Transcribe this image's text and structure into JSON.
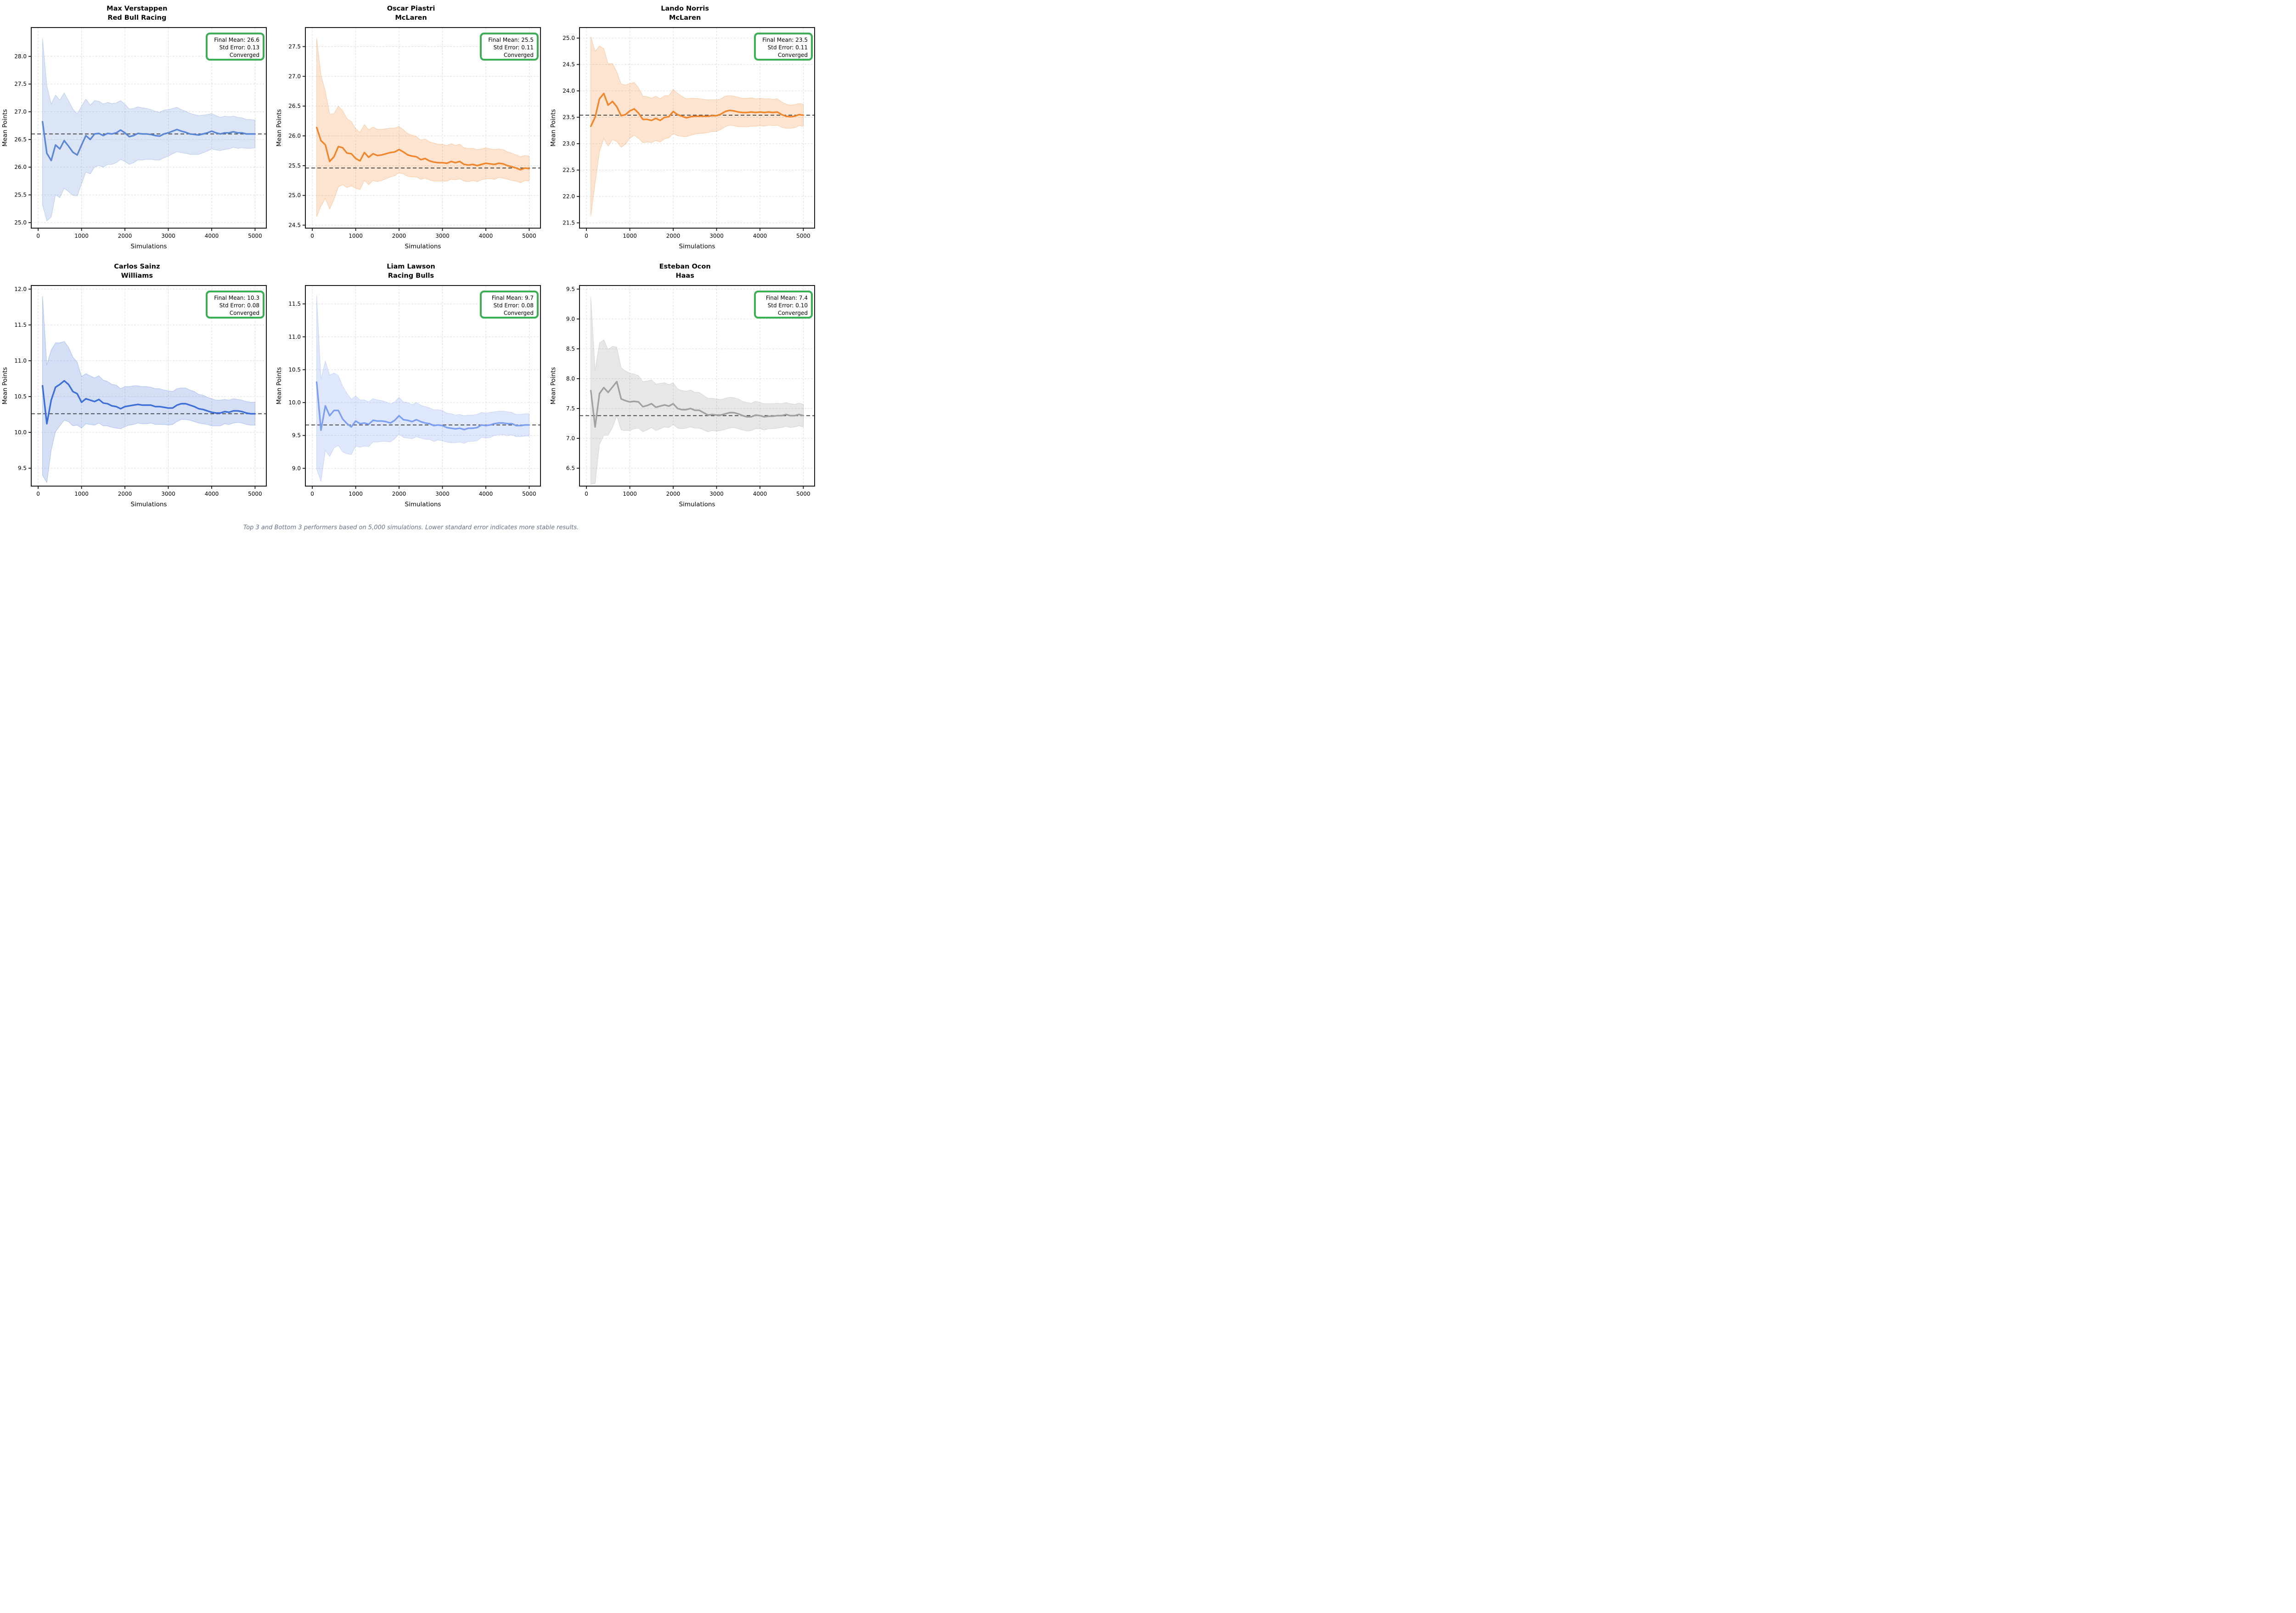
{
  "figure": {
    "footer": "Top 3 and Bottom 3 performers based on 5,000 simulations. Lower standard error indicates more stable results.",
    "xlabel": "Simulations",
    "ylabel": "Mean Points",
    "grid_color": "#dcdcdc",
    "spine_color": "#1a1a1a",
    "dashed_line_color": "#3c3c3c",
    "stats_box_border_color": "#3cae53",
    "x_values": [
      100,
      200,
      300,
      400,
      500,
      600,
      700,
      800,
      900,
      1000,
      1100,
      1200,
      1300,
      1400,
      1500,
      1600,
      1700,
      1800,
      1900,
      2000,
      2100,
      2200,
      2300,
      2400,
      2500,
      2600,
      2700,
      2800,
      2900,
      3000,
      3100,
      3200,
      3300,
      3400,
      3500,
      3600,
      3700,
      3800,
      3900,
      4000,
      4100,
      4200,
      4300,
      4400,
      4500,
      4600,
      4700,
      4800,
      4900,
      5000
    ]
  },
  "chart_data": [
    {
      "type": "line",
      "title": "Max Verstappen",
      "subtitle": "Red Bull Racing",
      "stats_lines": [
        "Final Mean: 26.6",
        "Std Error: 0.13",
        "Converged"
      ],
      "line_color": "#5b87d5",
      "band_alpha": 0.22,
      "dashed_mean": 26.6,
      "xlim": [
        -160,
        5260
      ],
      "ylim": [
        24.9,
        28.52
      ],
      "xticks": [
        0,
        1000,
        2000,
        3000,
        4000,
        5000
      ],
      "yticks": [
        25.0,
        25.5,
        26.0,
        26.5,
        27.0,
        27.5,
        28.0
      ],
      "mean": [
        26.82,
        26.25,
        26.12,
        26.4,
        26.33,
        26.48,
        26.38,
        26.27,
        26.22,
        26.4,
        26.57,
        26.5,
        26.6,
        26.61,
        26.57,
        26.61,
        26.6,
        26.62,
        26.67,
        26.62,
        26.55,
        26.57,
        26.61,
        26.6,
        26.6,
        26.59,
        26.57,
        26.56,
        26.6,
        26.62,
        26.65,
        26.68,
        26.65,
        26.63,
        26.6,
        26.59,
        26.58,
        26.6,
        26.62,
        26.65,
        26.62,
        26.6,
        26.62,
        26.62,
        26.64,
        26.62,
        26.62,
        26.6,
        26.6,
        26.6
      ],
      "ci_halfwidth": [
        1.5,
        1.22,
        1.02,
        0.9,
        0.88,
        0.86,
        0.82,
        0.78,
        0.74,
        0.7,
        0.66,
        0.62,
        0.6,
        0.58,
        0.57,
        0.56,
        0.55,
        0.54,
        0.53,
        0.52,
        0.5,
        0.49,
        0.48,
        0.47,
        0.46,
        0.45,
        0.44,
        0.43,
        0.43,
        0.42,
        0.41,
        0.4,
        0.39,
        0.38,
        0.37,
        0.36,
        0.35,
        0.34,
        0.33,
        0.32,
        0.31,
        0.3,
        0.3,
        0.29,
        0.28,
        0.28,
        0.27,
        0.26,
        0.26,
        0.25
      ]
    },
    {
      "type": "line",
      "title": "Oscar Piastri",
      "subtitle": "McLaren",
      "stats_lines": [
        "Final Mean: 25.5",
        "Std Error: 0.11",
        "Converged"
      ],
      "line_color": "#f0862c",
      "band_alpha": 0.22,
      "dashed_mean": 25.46,
      "xlim": [
        -160,
        5260
      ],
      "ylim": [
        24.45,
        27.82
      ],
      "xticks": [
        0,
        1000,
        2000,
        3000,
        4000,
        5000
      ],
      "yticks": [
        24.5,
        25.0,
        25.5,
        26.0,
        26.5,
        27.0,
        27.5
      ],
      "mean": [
        26.14,
        25.92,
        25.85,
        25.57,
        25.65,
        25.82,
        25.8,
        25.71,
        25.7,
        25.62,
        25.58,
        25.72,
        25.64,
        25.7,
        25.67,
        25.68,
        25.7,
        25.72,
        25.73,
        25.77,
        25.73,
        25.68,
        25.66,
        25.65,
        25.6,
        25.62,
        25.58,
        25.56,
        25.55,
        25.55,
        25.54,
        25.57,
        25.55,
        25.57,
        25.52,
        25.51,
        25.52,
        25.5,
        25.52,
        25.54,
        25.53,
        25.52,
        25.54,
        25.53,
        25.5,
        25.48,
        25.46,
        25.43,
        25.46,
        25.45
      ],
      "ci_halfwidth": [
        1.5,
        1.1,
        0.9,
        0.8,
        0.72,
        0.68,
        0.62,
        0.58,
        0.54,
        0.5,
        0.48,
        0.47,
        0.46,
        0.45,
        0.44,
        0.43,
        0.42,
        0.41,
        0.4,
        0.39,
        0.37,
        0.36,
        0.35,
        0.34,
        0.33,
        0.33,
        0.32,
        0.32,
        0.31,
        0.31,
        0.3,
        0.3,
        0.29,
        0.29,
        0.28,
        0.28,
        0.27,
        0.27,
        0.26,
        0.26,
        0.25,
        0.25,
        0.24,
        0.24,
        0.23,
        0.23,
        0.22,
        0.22,
        0.21,
        0.21
      ]
    },
    {
      "type": "line",
      "title": "Lando Norris",
      "subtitle": "McLaren",
      "stats_lines": [
        "Final Mean: 23.5",
        "Std Error: 0.11",
        "Converged"
      ],
      "line_color": "#f0862c",
      "band_alpha": 0.22,
      "dashed_mean": 23.54,
      "xlim": [
        -160,
        5260
      ],
      "ylim": [
        21.4,
        25.2
      ],
      "xticks": [
        0,
        1000,
        2000,
        3000,
        4000,
        5000
      ],
      "yticks": [
        21.5,
        22.0,
        22.5,
        23.0,
        23.5,
        24.0,
        24.5,
        25.0
      ],
      "mean": [
        23.33,
        23.5,
        23.85,
        23.95,
        23.73,
        23.8,
        23.7,
        23.53,
        23.55,
        23.62,
        23.66,
        23.58,
        23.46,
        23.46,
        23.44,
        23.48,
        23.44,
        23.5,
        23.51,
        23.61,
        23.55,
        23.52,
        23.49,
        23.51,
        23.52,
        23.52,
        23.52,
        23.52,
        23.53,
        23.53,
        23.56,
        23.61,
        23.63,
        23.62,
        23.6,
        23.59,
        23.59,
        23.6,
        23.59,
        23.6,
        23.59,
        23.6,
        23.59,
        23.6,
        23.55,
        23.52,
        23.51,
        23.52,
        23.55,
        23.54
      ],
      "ci_halfwidth": [
        1.7,
        1.25,
        1.0,
        0.85,
        0.78,
        0.72,
        0.66,
        0.6,
        0.56,
        0.52,
        0.5,
        0.48,
        0.44,
        0.43,
        0.42,
        0.42,
        0.41,
        0.41,
        0.4,
        0.42,
        0.4,
        0.38,
        0.36,
        0.35,
        0.34,
        0.33,
        0.32,
        0.31,
        0.3,
        0.3,
        0.29,
        0.29,
        0.28,
        0.28,
        0.28,
        0.27,
        0.27,
        0.27,
        0.26,
        0.26,
        0.26,
        0.25,
        0.25,
        0.25,
        0.24,
        0.23,
        0.22,
        0.22,
        0.21,
        0.21
      ]
    },
    {
      "type": "line",
      "title": "Carlos Sainz",
      "subtitle": "Williams",
      "stats_lines": [
        "Final Mean: 10.3",
        "Std Error: 0.08",
        "Converged"
      ],
      "line_color": "#3d6fd6",
      "band_alpha": 0.22,
      "dashed_mean": 10.26,
      "xlim": [
        -160,
        5260
      ],
      "ylim": [
        9.25,
        12.05
      ],
      "xticks": [
        0,
        1000,
        2000,
        3000,
        4000,
        5000
      ],
      "yticks": [
        9.5,
        10.0,
        10.5,
        11.0,
        11.5,
        12.0
      ],
      "mean": [
        10.65,
        10.12,
        10.45,
        10.63,
        10.67,
        10.72,
        10.67,
        10.57,
        10.54,
        10.42,
        10.47,
        10.45,
        10.43,
        10.46,
        10.41,
        10.4,
        10.37,
        10.36,
        10.33,
        10.36,
        10.37,
        10.38,
        10.39,
        10.38,
        10.38,
        10.38,
        10.36,
        10.36,
        10.35,
        10.34,
        10.34,
        10.38,
        10.4,
        10.4,
        10.38,
        10.36,
        10.33,
        10.32,
        10.3,
        10.28,
        10.27,
        10.27,
        10.29,
        10.28,
        10.3,
        10.3,
        10.29,
        10.27,
        10.26,
        10.26
      ],
      "ci_halfwidth": [
        1.25,
        0.82,
        0.7,
        0.62,
        0.58,
        0.55,
        0.52,
        0.48,
        0.44,
        0.36,
        0.35,
        0.34,
        0.33,
        0.33,
        0.32,
        0.31,
        0.3,
        0.3,
        0.28,
        0.28,
        0.27,
        0.27,
        0.26,
        0.26,
        0.26,
        0.25,
        0.25,
        0.25,
        0.24,
        0.24,
        0.23,
        0.23,
        0.22,
        0.22,
        0.21,
        0.21,
        0.2,
        0.2,
        0.19,
        0.19,
        0.18,
        0.18,
        0.17,
        0.17,
        0.17,
        0.16,
        0.16,
        0.16,
        0.16,
        0.16
      ]
    },
    {
      "type": "line",
      "title": "Liam Lawson",
      "subtitle": "Racing Bulls",
      "stats_lines": [
        "Final Mean: 9.7",
        "Std Error: 0.08",
        "Converged"
      ],
      "line_color": "#7d9ff0",
      "band_alpha": 0.25,
      "dashed_mean": 9.66,
      "xlim": [
        -160,
        5260
      ],
      "ylim": [
        8.73,
        11.78
      ],
      "xticks": [
        0,
        1000,
        2000,
        3000,
        4000,
        5000
      ],
      "yticks": [
        9.0,
        9.5,
        10.0,
        10.5,
        11.0,
        11.5
      ],
      "mean": [
        10.31,
        9.58,
        9.95,
        9.8,
        9.88,
        9.88,
        9.75,
        9.68,
        9.63,
        9.72,
        9.68,
        9.69,
        9.67,
        9.73,
        9.72,
        9.72,
        9.71,
        9.69,
        9.73,
        9.8,
        9.74,
        9.73,
        9.71,
        9.74,
        9.71,
        9.69,
        9.68,
        9.65,
        9.66,
        9.65,
        9.62,
        9.61,
        9.6,
        9.61,
        9.59,
        9.61,
        9.61,
        9.62,
        9.66,
        9.65,
        9.66,
        9.68,
        9.69,
        9.69,
        9.68,
        9.68,
        9.65,
        9.65,
        9.66,
        9.66
      ],
      "ci_halfwidth": [
        1.32,
        0.78,
        0.68,
        0.62,
        0.57,
        0.53,
        0.5,
        0.46,
        0.42,
        0.38,
        0.36,
        0.35,
        0.34,
        0.33,
        0.32,
        0.31,
        0.3,
        0.29,
        0.28,
        0.28,
        0.27,
        0.27,
        0.26,
        0.26,
        0.25,
        0.25,
        0.24,
        0.24,
        0.23,
        0.23,
        0.22,
        0.22,
        0.21,
        0.21,
        0.21,
        0.2,
        0.2,
        0.2,
        0.19,
        0.19,
        0.19,
        0.18,
        0.18,
        0.18,
        0.18,
        0.17,
        0.17,
        0.17,
        0.17,
        0.17
      ]
    },
    {
      "type": "line",
      "title": "Esteban Ocon",
      "subtitle": "Haas",
      "stats_lines": [
        "Final Mean: 7.4",
        "Std Error: 0.10",
        "Converged"
      ],
      "line_color": "#a1a1a5",
      "band_alpha": 0.26,
      "dashed_mean": 7.38,
      "xlim": [
        -160,
        5260
      ],
      "ylim": [
        6.2,
        9.56
      ],
      "xticks": [
        0,
        1000,
        2000,
        3000,
        4000,
        5000
      ],
      "yticks": [
        6.5,
        7.0,
        7.5,
        8.0,
        8.5,
        9.0,
        9.5
      ],
      "mean": [
        7.8,
        7.19,
        7.75,
        7.85,
        7.77,
        7.86,
        7.95,
        7.66,
        7.63,
        7.61,
        7.62,
        7.61,
        7.53,
        7.55,
        7.58,
        7.52,
        7.54,
        7.56,
        7.54,
        7.58,
        7.5,
        7.48,
        7.48,
        7.5,
        7.47,
        7.47,
        7.43,
        7.39,
        7.4,
        7.39,
        7.39,
        7.41,
        7.43,
        7.43,
        7.41,
        7.38,
        7.36,
        7.36,
        7.39,
        7.38,
        7.36,
        7.37,
        7.37,
        7.38,
        7.38,
        7.4,
        7.38,
        7.38,
        7.4,
        7.38
      ],
      "ci_halfwidth": [
        1.57,
        0.95,
        0.85,
        0.8,
        0.72,
        0.68,
        0.58,
        0.52,
        0.5,
        0.48,
        0.46,
        0.44,
        0.42,
        0.41,
        0.4,
        0.39,
        0.38,
        0.37,
        0.36,
        0.35,
        0.33,
        0.32,
        0.31,
        0.31,
        0.3,
        0.3,
        0.29,
        0.28,
        0.27,
        0.27,
        0.26,
        0.26,
        0.26,
        0.25,
        0.25,
        0.24,
        0.24,
        0.23,
        0.23,
        0.22,
        0.22,
        0.21,
        0.21,
        0.21,
        0.2,
        0.2,
        0.2,
        0.19,
        0.19,
        0.19
      ]
    }
  ]
}
